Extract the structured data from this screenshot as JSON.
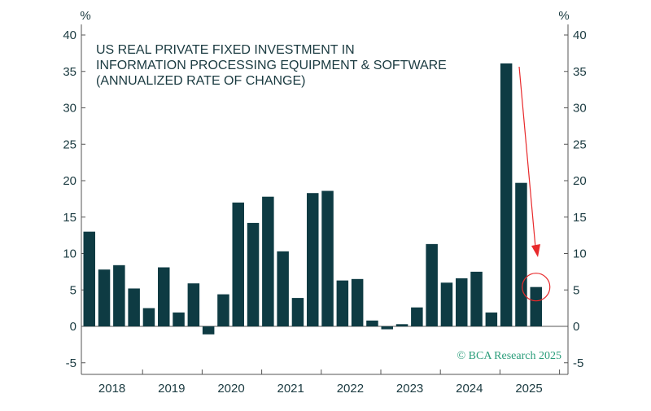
{
  "chart_data": {
    "type": "bar",
    "title_lines": [
      "US REAL PRIVATE FIXED INVESTMENT IN",
      "INFORMATION PROCESSING EQUIPMENT & SOFTWARE",
      "(ANNUALIZED RATE OF CHANGE)"
    ],
    "y_unit_left": "%",
    "y_unit_right": "%",
    "ylim": [
      -6,
      41
    ],
    "yticks": [
      -5,
      0,
      5,
      10,
      15,
      20,
      25,
      30,
      35,
      40
    ],
    "ytick_labels": [
      "-5",
      "0",
      "5",
      "10",
      "15",
      "20",
      "25",
      "30",
      "35",
      "40"
    ],
    "x_year_labels": [
      "2018",
      "2019",
      "2020",
      "2021",
      "2022",
      "2023",
      "2024",
      "2025"
    ],
    "categories": [
      "2018Q1",
      "2018Q2",
      "2018Q3",
      "2018Q4",
      "2019Q1",
      "2019Q2",
      "2019Q3",
      "2019Q4",
      "2020Q1",
      "2020Q2",
      "2020Q3",
      "2020Q4",
      "2021Q1",
      "2021Q2",
      "2021Q3",
      "2021Q4",
      "2022Q1",
      "2022Q2",
      "2022Q3",
      "2022Q4",
      "2023Q1",
      "2023Q2",
      "2023Q3",
      "2023Q4",
      "2024Q1",
      "2024Q2",
      "2024Q3",
      "2024Q4",
      "2025Q1",
      "2025Q2",
      "2025Q3"
    ],
    "values": [
      13.0,
      7.8,
      8.4,
      5.2,
      2.5,
      8.1,
      1.9,
      5.9,
      -1.1,
      4.4,
      17.0,
      14.2,
      17.8,
      10.3,
      3.9,
      18.3,
      18.6,
      6.3,
      6.5,
      0.8,
      -0.4,
      0.3,
      2.6,
      11.3,
      6.0,
      6.6,
      7.5,
      1.9,
      36.1,
      19.7,
      5.4
    ],
    "grid": false,
    "bar_color": "#0e3b43",
    "annotation_color": "#e8292b",
    "credit_text": "© BCA Research 2025",
    "credit_color": "#2a9d7a"
  }
}
